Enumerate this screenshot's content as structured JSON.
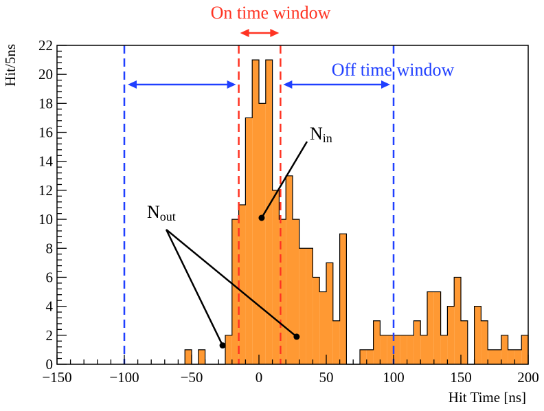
{
  "chart_data": {
    "type": "bar",
    "title": "",
    "xlabel": "Hit Time [ns]",
    "ylabel": "Hit/5ns",
    "xlim": [
      -150,
      200
    ],
    "ylim": [
      0,
      22
    ],
    "bin_width": 5,
    "x_ticks": [
      -150,
      -100,
      -50,
      0,
      50,
      100,
      150,
      200
    ],
    "x_tick_labels": [
      "−150",
      "−100",
      "−50",
      "0",
      "50",
      "100",
      "150",
      "200"
    ],
    "y_ticks": [
      0,
      2,
      4,
      6,
      8,
      10,
      12,
      14,
      16,
      18,
      20,
      22
    ],
    "grid": false,
    "series": [
      {
        "name": "",
        "color": "#FF9933",
        "bin_low_edges": [
          -55,
          -50,
          -45,
          -40,
          -35,
          -30,
          -25,
          -20,
          -15,
          -10,
          -5,
          0,
          5,
          10,
          15,
          20,
          25,
          30,
          35,
          40,
          45,
          50,
          55,
          60,
          65,
          70,
          75,
          80,
          85,
          90,
          95,
          100,
          105,
          110,
          115,
          120,
          125,
          130,
          135,
          140,
          145,
          150,
          155,
          160,
          165,
          170,
          175,
          180,
          185,
          190,
          195
        ],
        "values": [
          1,
          0,
          1,
          0,
          0,
          0,
          2,
          10,
          11,
          17,
          21,
          18,
          21,
          12,
          10,
          13,
          10,
          8,
          8,
          6,
          5,
          7,
          3,
          9,
          0,
          0,
          1,
          1,
          3,
          2,
          2,
          2,
          2,
          2,
          3,
          2,
          5,
          5,
          2,
          4,
          6,
          3,
          0,
          4,
          3,
          1,
          1,
          2,
          1,
          1,
          2
        ]
      }
    ],
    "annotations": {
      "on_window": {
        "label": "On time window",
        "range": [
          -15,
          16
        ],
        "color": "#FF3322"
      },
      "off_window": {
        "label": "Off time window",
        "range": [
          -100,
          100
        ],
        "color": "#1F3FFF"
      },
      "n_in": {
        "label_base": "N",
        "label_sub": "in",
        "point": [
          2,
          10.1
        ]
      },
      "n_out": {
        "label_base": "N",
        "label_sub": "out",
        "points": [
          [
            -27,
            1.3
          ],
          [
            28,
            1.9
          ]
        ]
      }
    }
  }
}
